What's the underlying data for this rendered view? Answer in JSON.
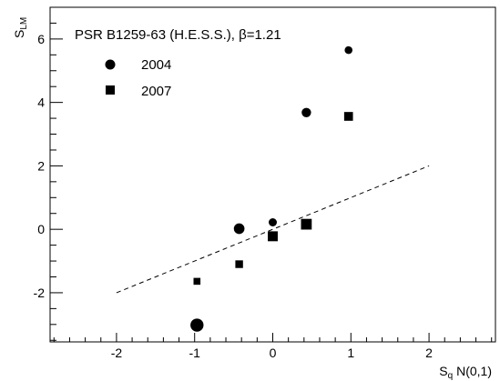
{
  "chart_data": {
    "type": "scatter",
    "title": "PSR B1259-63 (H.E.S.S.), β=1.21",
    "xlabel": "S_q N(0,1)",
    "ylabel": "S_LM",
    "xlim": [
      -2.85,
      2.85
    ],
    "ylim": [
      -3.55,
      7.0
    ],
    "xticks": [
      -2,
      -1,
      0,
      1,
      2
    ],
    "yticks": [
      -2,
      0,
      2,
      4,
      6
    ],
    "xtick_labels": [
      "-2",
      "-1",
      "0",
      "1",
      "2"
    ],
    "ytick_labels": [
      "-2",
      "0",
      "2",
      "4",
      "6"
    ],
    "grid": false,
    "legend": "top-left",
    "series": [
      {
        "name": "2004",
        "marker": "circle",
        "color": "#000000",
        "points": [
          {
            "x": -0.97,
            "y": -3.02,
            "size": 1.6
          },
          {
            "x": -0.43,
            "y": 0.02,
            "size": 1.3
          },
          {
            "x": 0.0,
            "y": 0.22,
            "size": 1.0
          },
          {
            "x": 0.43,
            "y": 3.68,
            "size": 1.15
          },
          {
            "x": 0.97,
            "y": 5.65,
            "size": 0.95
          }
        ]
      },
      {
        "name": "2007",
        "marker": "square",
        "color": "#000000",
        "points": [
          {
            "x": -0.97,
            "y": -1.64,
            "size": 0.9
          },
          {
            "x": -0.43,
            "y": -1.1,
            "size": 1.0
          },
          {
            "x": 0.0,
            "y": -0.22,
            "size": 1.3
          },
          {
            "x": 0.43,
            "y": 0.16,
            "size": 1.4
          },
          {
            "x": 0.97,
            "y": 3.56,
            "size": 1.15
          }
        ]
      }
    ],
    "reference_line": {
      "style": "dashed",
      "x": [
        -2,
        2
      ],
      "y": [
        -2,
        2
      ]
    }
  }
}
